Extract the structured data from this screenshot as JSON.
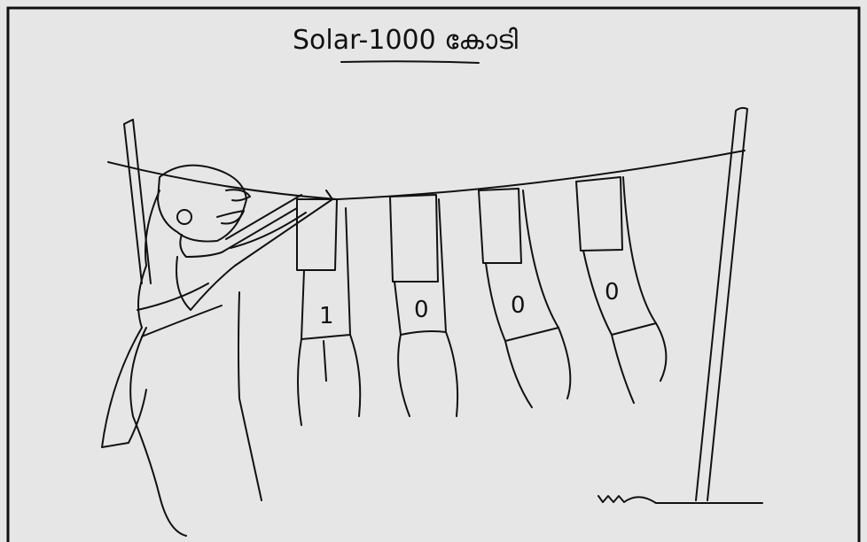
{
  "title": "Solar-1000 കോടി",
  "labels": [
    "1",
    "0",
    "0",
    "0"
  ]
}
